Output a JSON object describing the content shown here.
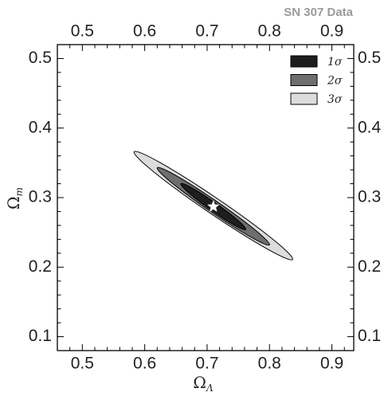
{
  "header": {
    "dataset_title": "SN 307 Data"
  },
  "chart_data": {
    "type": "contour",
    "title": "",
    "xlabel": "Ω",
    "xlabel_sub": "Λ",
    "ylabel": "Ω",
    "ylabel_sub": "m",
    "xlim": [
      0.46,
      0.935
    ],
    "ylim": [
      0.08,
      0.52
    ],
    "x_ticks": [
      0.5,
      0.6,
      0.7,
      0.8,
      0.9
    ],
    "x_tick_labels": [
      "0.5",
      "0.6",
      "0.7",
      "0.8",
      "0.9"
    ],
    "y_ticks": [
      0.1,
      0.2,
      0.3,
      0.4,
      0.5
    ],
    "y_tick_labels": [
      "0.1",
      "0.2",
      "0.3",
      "0.4",
      "0.5"
    ],
    "grid": false,
    "legend_position": "top-right",
    "best_fit": {
      "omega_lambda": 0.71,
      "omega_m": 0.287,
      "marker": "star",
      "color": "#ffffff"
    },
    "contours": [
      {
        "label": "3",
        "level": "3σ",
        "color": "#dcdcdc",
        "endpoints": [
          [
            0.583,
            0.366
          ],
          [
            0.837,
            0.211
          ]
        ],
        "half_width": 0.0115
      },
      {
        "label": "2",
        "level": "2σ",
        "color": "#6e6e6e",
        "endpoints": [
          [
            0.62,
            0.343
          ],
          [
            0.8,
            0.232
          ]
        ],
        "half_width": 0.0085
      },
      {
        "label": "1",
        "level": "1σ",
        "color": "#1e1e1e",
        "endpoints": [
          [
            0.658,
            0.32
          ],
          [
            0.762,
            0.254
          ]
        ],
        "half_width": 0.006
      }
    ],
    "legend": [
      {
        "label": "1",
        "color": "#1e1e1e"
      },
      {
        "label": "2",
        "color": "#6e6e6e"
      },
      {
        "label": "3",
        "color": "#dcdcdc"
      }
    ],
    "legend_symbol": "σ"
  }
}
